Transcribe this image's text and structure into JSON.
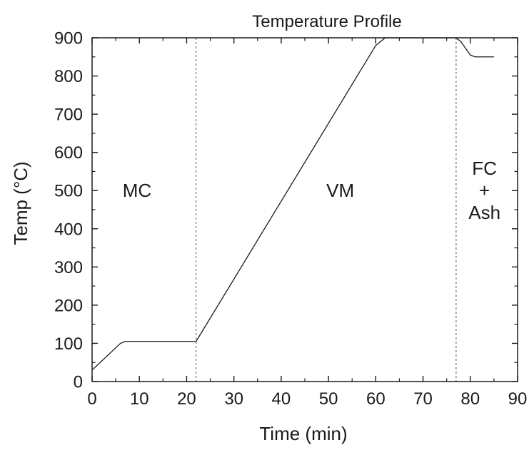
{
  "chart_data": {
    "type": "line",
    "title": "Temperature Profile",
    "xlabel": "Time (min)",
    "ylabel": "Temp (°C)",
    "xlim": [
      0,
      90
    ],
    "ylim": [
      0,
      900
    ],
    "xticks": [
      0,
      10,
      20,
      30,
      40,
      50,
      60,
      70,
      80,
      90
    ],
    "yticks": [
      0,
      100,
      200,
      300,
      400,
      500,
      600,
      700,
      800,
      900
    ],
    "x_minor_step": 5,
    "y_minor_step": 50,
    "grid": false,
    "series": [
      {
        "color": "#1a1a1a",
        "x": [
          0,
          6,
          7,
          22,
          60,
          62,
          77,
          78,
          80,
          81,
          85
        ],
        "y": [
          30,
          100,
          105,
          105,
          880,
          900,
          900,
          890,
          855,
          850,
          850
        ]
      }
    ],
    "vlines": [
      22,
      77
    ],
    "annotations": [
      {
        "lines": [
          "MC"
        ],
        "x": 9.5,
        "y": 500
      },
      {
        "lines": [
          "VM"
        ],
        "x": 52.5,
        "y": 500
      },
      {
        "lines": [
          "FC",
          "+",
          "Ash"
        ],
        "x": 83,
        "y": 500
      }
    ]
  }
}
